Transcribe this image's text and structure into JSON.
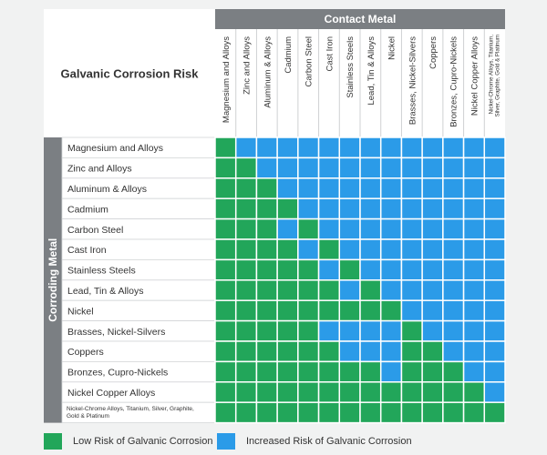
{
  "chart_data": {
    "type": "heatmap",
    "title": "Galvanic Corrosion Risk",
    "column_group_label": "Contact Metal",
    "row_group_label": "Corroding Metal",
    "columns": [
      "Magnesium and Alloys",
      "Zinc and Alloys",
      "Aluminum & Alloys",
      "Cadmium",
      "Carbon Steel",
      "Cast Iron",
      "Stainless Steels",
      "Lead, Tin & Alloys",
      "Nickel",
      "Brasses, Nickel-Silvers",
      "Coppers",
      "Bronzes, Cupro-Nickels",
      "Nickel Copper Alloys",
      "Nickel-Chrome Alloys, Titanium, Silver, Graphite, Gold & Platinum"
    ],
    "rows": [
      "Magnesium and Alloys",
      "Zinc and Alloys",
      "Aluminum & Alloys",
      "Cadmium",
      "Carbon Steel",
      "Cast Iron",
      "Stainless Steels",
      "Lead, Tin & Alloys",
      "Nickel",
      "Brasses, Nickel-Silvers",
      "Coppers",
      "Bronzes, Cupro-Nickels",
      "Nickel Copper Alloys",
      "Nickel-Chrome Alloys, Titanium, Silver, Graphite, Gold & Platinum"
    ],
    "values": [
      [
        "L",
        "I",
        "I",
        "I",
        "I",
        "I",
        "I",
        "I",
        "I",
        "I",
        "I",
        "I",
        "I",
        "I"
      ],
      [
        "L",
        "L",
        "I",
        "I",
        "I",
        "I",
        "I",
        "I",
        "I",
        "I",
        "I",
        "I",
        "I",
        "I"
      ],
      [
        "L",
        "L",
        "L",
        "I",
        "I",
        "I",
        "I",
        "I",
        "I",
        "I",
        "I",
        "I",
        "I",
        "I"
      ],
      [
        "L",
        "L",
        "L",
        "L",
        "I",
        "I",
        "I",
        "I",
        "I",
        "I",
        "I",
        "I",
        "I",
        "I"
      ],
      [
        "L",
        "L",
        "L",
        "I",
        "L",
        "I",
        "I",
        "I",
        "I",
        "I",
        "I",
        "I",
        "I",
        "I"
      ],
      [
        "L",
        "L",
        "L",
        "L",
        "I",
        "L",
        "I",
        "I",
        "I",
        "I",
        "I",
        "I",
        "I",
        "I"
      ],
      [
        "L",
        "L",
        "L",
        "L",
        "L",
        "I",
        "L",
        "I",
        "I",
        "I",
        "I",
        "I",
        "I",
        "I"
      ],
      [
        "L",
        "L",
        "L",
        "L",
        "L",
        "L",
        "I",
        "L",
        "I",
        "I",
        "I",
        "I",
        "I",
        "I"
      ],
      [
        "L",
        "L",
        "L",
        "L",
        "L",
        "L",
        "L",
        "L",
        "L",
        "I",
        "I",
        "I",
        "I",
        "I"
      ],
      [
        "L",
        "L",
        "L",
        "L",
        "L",
        "I",
        "I",
        "I",
        "I",
        "L",
        "I",
        "I",
        "I",
        "I"
      ],
      [
        "L",
        "L",
        "L",
        "L",
        "L",
        "L",
        "I",
        "I",
        "I",
        "L",
        "L",
        "I",
        "I",
        "I"
      ],
      [
        "L",
        "L",
        "L",
        "L",
        "L",
        "L",
        "L",
        "L",
        "I",
        "L",
        "L",
        "L",
        "I",
        "I"
      ],
      [
        "L",
        "L",
        "L",
        "L",
        "L",
        "L",
        "L",
        "L",
        "L",
        "L",
        "L",
        "L",
        "L",
        "I"
      ],
      [
        "L",
        "L",
        "L",
        "L",
        "L",
        "L",
        "L",
        "L",
        "L",
        "L",
        "L",
        "L",
        "L",
        "L"
      ]
    ],
    "legend": [
      {
        "key": "L",
        "label": "Low Risk of Galvanic Corrosion",
        "color": "#22a65a"
      },
      {
        "key": "I",
        "label": "Increased Risk of Galvanic Corrosion",
        "color": "#2b9be8"
      }
    ],
    "legend_position": "bottom"
  },
  "colors": {
    "header_bar": "#7b7f83",
    "border": "#ffffff",
    "label_background": "#ffffff",
    "page_background": "#f1f2f2"
  }
}
